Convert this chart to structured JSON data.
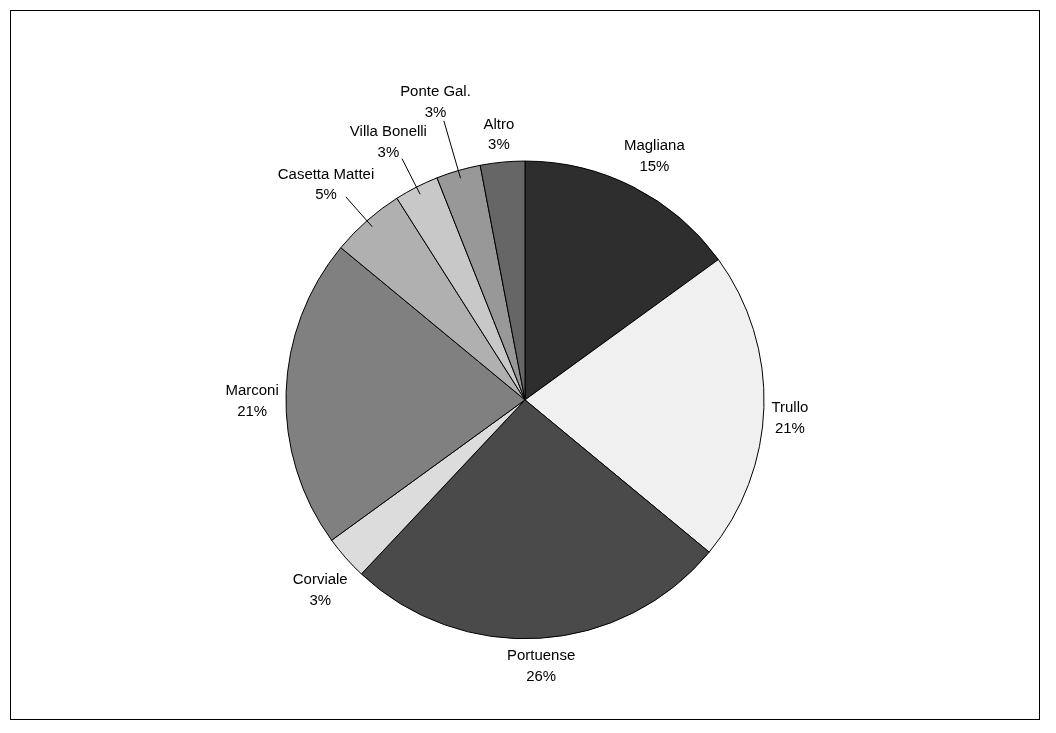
{
  "chart_data": {
    "type": "pie",
    "categories": [
      "Magliana",
      "Trullo",
      "Portuense",
      "Corviale",
      "Marconi",
      "Casetta Mattei",
      "Villa Bonelli",
      "Ponte Gal.",
      "Altro"
    ],
    "values": [
      15,
      21,
      26,
      3,
      21,
      5,
      3,
      3,
      3
    ],
    "colors": [
      "#2e2e2e",
      "#f0f0f0",
      "#4a4a4a",
      "#dcdcdc",
      "#808080",
      "#b0b0b0",
      "#c8c8c8",
      "#989898",
      "#666666"
    ],
    "value_labels": [
      "15%",
      "21%",
      "26%",
      "3%",
      "21%",
      "5%",
      "3%",
      "3%",
      "3%"
    ],
    "legend": false
  }
}
